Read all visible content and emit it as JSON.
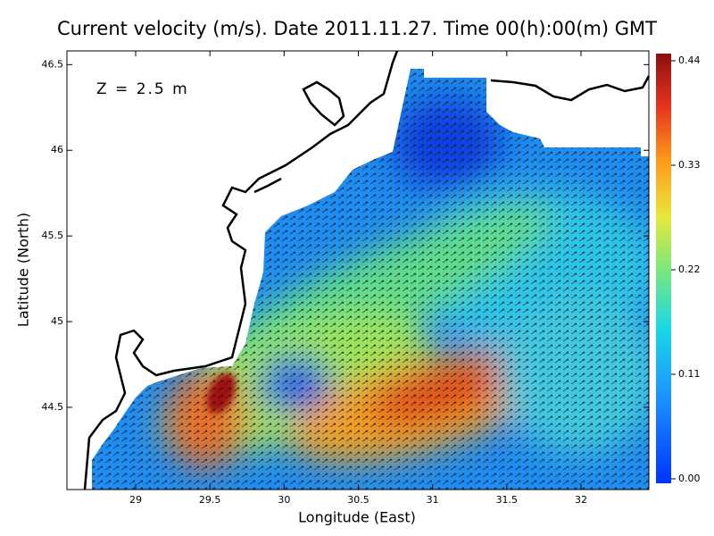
{
  "chart_data": {
    "type": "map",
    "title": "Current velocity (m/s). Date 2011.11.27. Time 00(h):00(m) GMT",
    "annotation": "Z = 2.5 m",
    "xlabel": "Longitude (East)",
    "ylabel": "Latitude (North)",
    "xlim": [
      28.537,
      32.457
    ],
    "ylim": [
      44.02,
      46.58
    ],
    "xticks": [
      29,
      29.5,
      30,
      30.5,
      31,
      31.5,
      32
    ],
    "yticks": [
      44.5,
      45,
      45.5,
      46,
      46.5
    ],
    "colorbar_lim": [
      0,
      0.44
    ],
    "colorbar_ticks": [
      {
        "value": 0,
        "label": "0.00"
      },
      0.11,
      0.22,
      0.33,
      0.44
    ]
  }
}
